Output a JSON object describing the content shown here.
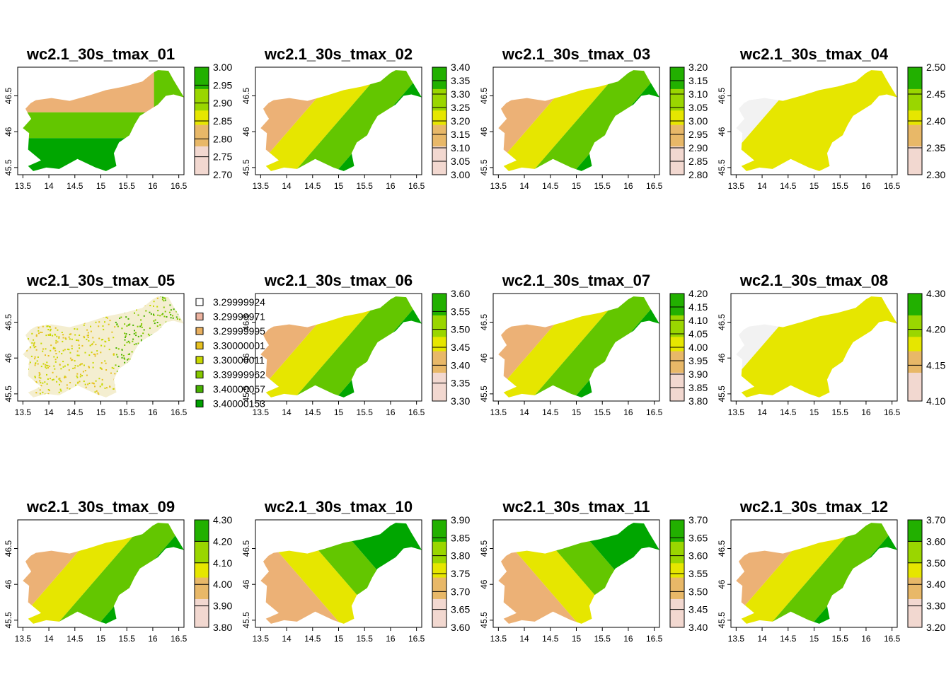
{
  "chart_data": {
    "type": "heatmap",
    "xlim": [
      13.4,
      16.6
    ],
    "ylim": [
      45.4,
      46.9
    ],
    "x_ticks": [
      "13.5",
      "14",
      "14.5",
      "15",
      "15.5",
      "16",
      "16.5"
    ],
    "y_ticks": [
      "45.5",
      "46",
      "46.5"
    ],
    "palette": [
      "#f2f2f2",
      "#ecb176",
      "#e6e600",
      "#63c600",
      "#00a600"
    ],
    "panels": [
      {
        "title": "wc2.1_30s_tmax_01",
        "legend_type": "continuous",
        "legend_ticks": [
          "2.70",
          "2.75",
          "2.80",
          "2.85",
          "2.90",
          "2.95",
          "3.00"
        ],
        "pattern": "rows"
      },
      {
        "title": "wc2.1_30s_tmax_02",
        "legend_type": "continuous",
        "legend_ticks": [
          "3.00",
          "3.05",
          "3.10",
          "3.15",
          "3.20",
          "3.25",
          "3.30",
          "3.35",
          "3.40"
        ],
        "pattern": "diag"
      },
      {
        "title": "wc2.1_30s_tmax_03",
        "legend_type": "continuous",
        "legend_ticks": [
          "2.80",
          "2.85",
          "2.90",
          "2.95",
          "3.00",
          "3.05",
          "3.10",
          "3.15",
          "3.20"
        ],
        "pattern": "diag"
      },
      {
        "title": "wc2.1_30s_tmax_04",
        "legend_type": "continuous",
        "legend_ticks": [
          "2.30",
          "2.35",
          "2.40",
          "2.45",
          "2.50"
        ],
        "pattern": "mostly"
      },
      {
        "title": "wc2.1_30s_tmax_05",
        "legend_type": "categorical",
        "legend_items": [
          "3.29999924",
          "3.29999971",
          "3.29999995",
          "3.30000001",
          "3.30000011",
          "3.39999962",
          "3.40000057",
          "3.40000153"
        ],
        "legend_colors": [
          "#ffffff",
          "#ecb3a0",
          "#e8b060",
          "#e6c020",
          "#c8d800",
          "#86c800",
          "#46b000",
          "#00a000"
        ],
        "pattern": "speckle"
      },
      {
        "title": "wc2.1_30s_tmax_06",
        "legend_type": "continuous",
        "legend_ticks": [
          "3.30",
          "3.35",
          "3.40",
          "3.45",
          "3.50",
          "3.55",
          "3.60"
        ],
        "pattern": "diag"
      },
      {
        "title": "wc2.1_30s_tmax_07",
        "legend_type": "continuous",
        "legend_ticks": [
          "3.80",
          "3.85",
          "3.90",
          "3.95",
          "4.00",
          "4.05",
          "4.10",
          "4.15",
          "4.20"
        ],
        "pattern": "diag"
      },
      {
        "title": "wc2.1_30s_tmax_08",
        "legend_type": "continuous",
        "legend_ticks": [
          "4.10",
          "4.15",
          "4.20",
          "4.30"
        ],
        "pattern": "mostly"
      },
      {
        "title": "wc2.1_30s_tmax_09",
        "legend_type": "continuous",
        "legend_ticks": [
          "3.80",
          "3.90",
          "4.00",
          "4.10",
          "4.20",
          "4.30"
        ],
        "pattern": "diag"
      },
      {
        "title": "wc2.1_30s_tmax_10",
        "legend_type": "continuous",
        "legend_ticks": [
          "3.60",
          "3.65",
          "3.70",
          "3.75",
          "3.80",
          "3.85",
          "3.90"
        ],
        "pattern": "diagrev"
      },
      {
        "title": "wc2.1_30s_tmax_11",
        "legend_type": "continuous",
        "legend_ticks": [
          "3.40",
          "3.45",
          "3.50",
          "3.55",
          "3.60",
          "3.65",
          "3.70"
        ],
        "pattern": "diagrev"
      },
      {
        "title": "wc2.1_30s_tmax_12",
        "legend_type": "continuous",
        "legend_ticks": [
          "3.20",
          "3.30",
          "3.40",
          "3.50",
          "3.60",
          "3.70"
        ],
        "pattern": "diag"
      }
    ]
  }
}
